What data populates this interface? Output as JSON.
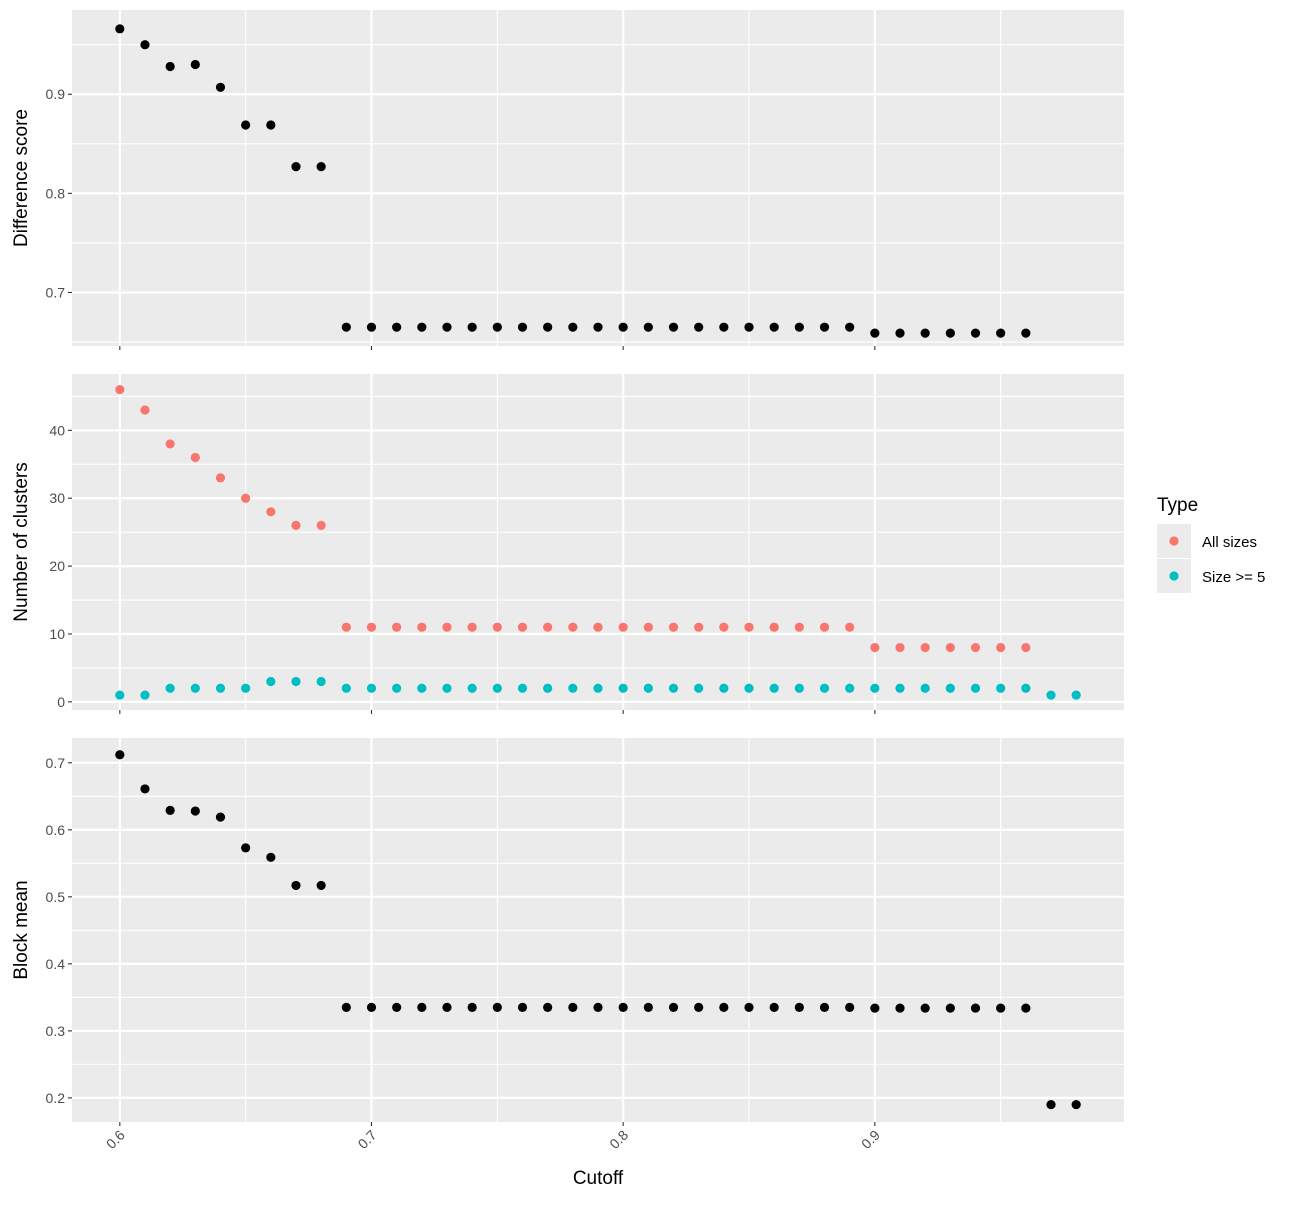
{
  "chart_data": {
    "type": "scatter",
    "xlabel": "Cutoff",
    "xlim": [
      0.581,
      0.999
    ],
    "xticks": [
      "0.6",
      "0.7",
      "0.8",
      "0.9"
    ],
    "x": [
      0.6,
      0.61,
      0.62,
      0.63,
      0.64,
      0.65,
      0.66,
      0.67,
      0.68,
      0.69,
      0.7,
      0.71,
      0.72,
      0.73,
      0.74,
      0.75,
      0.76,
      0.77,
      0.78,
      0.79,
      0.8,
      0.81,
      0.82,
      0.83,
      0.84,
      0.85,
      0.86,
      0.87,
      0.88,
      0.89,
      0.9,
      0.91,
      0.92,
      0.93,
      0.94,
      0.95,
      0.96,
      0.97,
      0.98
    ],
    "grid": true,
    "legend": {
      "title": "Type",
      "position": "right",
      "entries": [
        {
          "label": "All sizes",
          "color": "#F8766D"
        },
        {
          "label": "Size >= 5",
          "color": "#00BFC4"
        }
      ]
    },
    "panels": [
      {
        "ylabel": "Difference score",
        "ylim": [
          0.646,
          0.985
        ],
        "yticks": [
          0.7,
          0.8,
          0.9
        ],
        "yticklabels": [
          "0.7",
          "0.8",
          "0.9"
        ],
        "series": [
          {
            "color": "#000000",
            "values": [
              0.966,
              0.95,
              0.928,
              0.93,
              0.907,
              0.869,
              0.869,
              0.827,
              0.827,
              0.665,
              0.665,
              0.665,
              0.665,
              0.665,
              0.665,
              0.665,
              0.665,
              0.665,
              0.665,
              0.665,
              0.665,
              0.665,
              0.665,
              0.665,
              0.665,
              0.665,
              0.665,
              0.665,
              0.665,
              0.665,
              0.659,
              0.659,
              0.659,
              0.659,
              0.659,
              0.659,
              0.659,
              null,
              null
            ]
          }
        ]
      },
      {
        "ylabel": "Number of clusters",
        "ylim": [
          -1.2,
          48.3
        ],
        "yticks": [
          0,
          10,
          20,
          30,
          40
        ],
        "yticklabels": [
          "0",
          "10",
          "20",
          "30",
          "40"
        ],
        "series": [
          {
            "name": "All sizes",
            "color": "#F8766D",
            "values": [
              46,
              43,
              38,
              36,
              33,
              30,
              28,
              26,
              26,
              11,
              11,
              11,
              11,
              11,
              11,
              11,
              11,
              11,
              11,
              11,
              11,
              11,
              11,
              11,
              11,
              11,
              11,
              11,
              11,
              11,
              8,
              8,
              8,
              8,
              8,
              8,
              8,
              null,
              null
            ]
          },
          {
            "name": "Size >= 5",
            "color": "#00BFC4",
            "values": [
              1,
              1,
              2,
              2,
              2,
              2,
              3,
              3,
              3,
              2,
              2,
              2,
              2,
              2,
              2,
              2,
              2,
              2,
              2,
              2,
              2,
              2,
              2,
              2,
              2,
              2,
              2,
              2,
              2,
              2,
              2,
              2,
              2,
              2,
              2,
              2,
              2,
              1,
              1
            ]
          }
        ]
      },
      {
        "ylabel": "Block mean",
        "ylim": [
          0.164,
          0.737
        ],
        "yticks": [
          0.2,
          0.3,
          0.4,
          0.5,
          0.6,
          0.7
        ],
        "yticklabels": [
          "0.2",
          "0.3",
          "0.4",
          "0.5",
          "0.6",
          "0.7"
        ],
        "series": [
          {
            "color": "#000000",
            "values": [
              0.712,
              0.661,
              0.629,
              0.628,
              0.619,
              0.573,
              0.559,
              0.517,
              0.517,
              0.335,
              0.335,
              0.335,
              0.335,
              0.335,
              0.335,
              0.335,
              0.335,
              0.335,
              0.335,
              0.335,
              0.335,
              0.335,
              0.335,
              0.335,
              0.335,
              0.335,
              0.335,
              0.335,
              0.335,
              0.335,
              0.334,
              0.334,
              0.334,
              0.334,
              0.334,
              0.334,
              0.334,
              0.19,
              0.19
            ]
          }
        ]
      }
    ]
  }
}
